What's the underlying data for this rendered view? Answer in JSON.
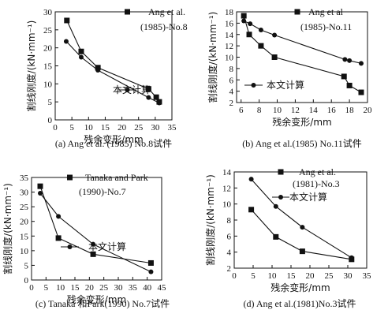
{
  "chart_data": [
    {
      "type": "line",
      "caption": "(a) Ang et al. (1985) No.8试件",
      "xlabel": "残余变形/mm",
      "ylabel": "割线刚度/(kN·mm⁻¹)",
      "xlim": [
        0,
        35
      ],
      "ylim": [
        0,
        30
      ],
      "xticks": [
        0,
        5,
        10,
        15,
        20,
        25,
        30,
        35
      ],
      "yticks": [
        0,
        5,
        10,
        15,
        20,
        25,
        30
      ],
      "series": [
        {
          "name": "Ang et al. (1985)-No.8",
          "marker": "square",
          "x": [
            3.5,
            7.8,
            12.8,
            28.0,
            30.3,
            31.2
          ],
          "y": [
            27.6,
            19.0,
            14.5,
            8.6,
            6.3,
            5.0
          ]
        },
        {
          "name": "本文计算",
          "marker": "circle",
          "x": [
            3.3,
            7.8,
            12.8,
            28.0,
            31.2
          ],
          "y": [
            21.8,
            17.4,
            13.8,
            6.2,
            4.7
          ]
        }
      ],
      "legend": [
        {
          "text": "Ang et al.",
          "marker": "square",
          "line": true
        },
        {
          "text": "(1985)-No.8"
        },
        {
          "text": "本文计算",
          "marker": "circle",
          "line": true
        }
      ]
    },
    {
      "type": "line",
      "caption": "(b) Ang et al.(1985) No.11试件",
      "xlabel": "残余变形/mm",
      "ylabel": "割线刚度/(kN·mm⁻¹)",
      "xlim": [
        5.5,
        20
      ],
      "ylim": [
        2,
        18
      ],
      "xticks": [
        6,
        8,
        10,
        12,
        14,
        16,
        18,
        20
      ],
      "yticks": [
        2,
        4,
        6,
        8,
        10,
        12,
        14,
        16,
        18
      ],
      "series": [
        {
          "name": "Ang et al. (1985)-No.11",
          "marker": "square",
          "x": [
            6.3,
            6.9,
            8.2,
            9.7,
            17.4,
            18.0,
            19.3
          ],
          "y": [
            17.3,
            14.0,
            12.0,
            10.0,
            6.6,
            5.0,
            3.8
          ]
        },
        {
          "name": "本文计算",
          "marker": "circle",
          "x": [
            6.3,
            7.0,
            8.2,
            9.7,
            17.5,
            18.0,
            19.3
          ],
          "y": [
            16.4,
            15.9,
            14.8,
            13.9,
            9.6,
            9.4,
            8.9
          ]
        }
      ],
      "legend": [
        {
          "text": "Ang et al",
          "marker": "square",
          "line": true
        },
        {
          "text": "(1985)-No.11"
        },
        {
          "text": "本文计算",
          "marker": "circle",
          "line": true
        }
      ]
    },
    {
      "type": "line",
      "caption": "(c) Tanaka 和Park(1990) No.7试件",
      "xlabel": "残余变形/mm",
      "ylabel": "割线刚度/(kN·mm⁻¹)",
      "xlim": [
        0,
        45
      ],
      "ylim": [
        0,
        35
      ],
      "xticks": [
        0,
        5,
        10,
        15,
        20,
        25,
        30,
        35,
        40,
        45
      ],
      "yticks": [
        0,
        5,
        10,
        15,
        20,
        25,
        30,
        35
      ],
      "series": [
        {
          "name": "Tanaka and Park (1990)-No.7",
          "marker": "square",
          "x": [
            3.0,
            9.3,
            21.3,
            41.3
          ],
          "y": [
            32.0,
            14.3,
            8.8,
            5.8
          ]
        },
        {
          "name": "本文计算",
          "marker": "circle",
          "x": [
            3.0,
            9.3,
            21.3,
            41.3
          ],
          "y": [
            29.6,
            21.7,
            12.2,
            2.8
          ]
        }
      ],
      "legend": [
        {
          "text": "Tanaka and Park",
          "marker": "square",
          "line": true
        },
        {
          "text": "(1990)-No.7"
        },
        {
          "text": "本文计算",
          "marker": "circle",
          "line": true
        }
      ]
    },
    {
      "type": "line",
      "caption": "(d) Ang et al.(1981)No.3试件",
      "xlabel": "残余变形/mm",
      "ylabel": "割线刚度/(kN·mm⁻¹)",
      "xlim": [
        0,
        35
      ],
      "ylim": [
        2,
        14
      ],
      "xticks": [
        0,
        5,
        10,
        15,
        20,
        25,
        30,
        35
      ],
      "yticks": [
        2,
        4,
        6,
        8,
        10,
        12,
        14
      ],
      "series": [
        {
          "name": "Ang et al. (1981)-No.3",
          "marker": "square",
          "x": [
            4.5,
            11.0,
            18.0,
            31.0
          ],
          "y": [
            9.3,
            5.9,
            4.1,
            3.1
          ]
        },
        {
          "name": "本文计算",
          "marker": "circle",
          "x": [
            4.5,
            11.0,
            18.0,
            31.0
          ],
          "y": [
            13.1,
            9.7,
            7.1,
            3.3
          ]
        }
      ],
      "legend": [
        {
          "text": "Ang et al.",
          "marker": "square",
          "line": true
        },
        {
          "text": "(1981)-No.3"
        },
        {
          "text": "本文计算",
          "marker": "circle",
          "line": true
        }
      ]
    }
  ]
}
